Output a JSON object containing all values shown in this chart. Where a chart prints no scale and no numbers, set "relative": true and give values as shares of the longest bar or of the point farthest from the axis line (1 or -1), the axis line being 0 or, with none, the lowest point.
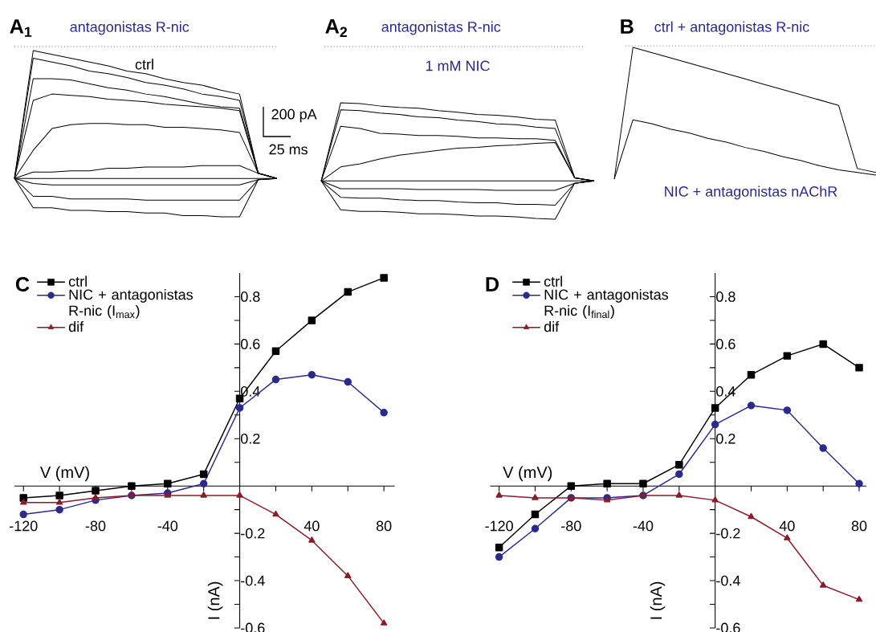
{
  "chart_data": [
    {
      "type": "line",
      "relative": true,
      "title": "antagonistas R-nic",
      "annotations": [
        "A$_{1}$",
        "ctrl",
        "200 pA",
        "25 ms"
      ],
      "categories": [
        null,
        null,
        null,
        null,
        null,
        null,
        null,
        null,
        null,
        null,
        null,
        null,
        null,
        null,
        null
      ],
      "series": [
        {
          "color": "#000000",
          "values": [
            0,
            1.0,
            0.97,
            0.94,
            0.91,
            0.88,
            0.84,
            0.82,
            0.78,
            0.75,
            0.73,
            0.69,
            0.66,
            0.04,
            0
          ]
        },
        {
          "color": "#000000",
          "values": [
            0,
            0.94,
            0.91,
            0.88,
            0.84,
            0.82,
            0.79,
            0.75,
            0.73,
            0.7,
            0.66,
            0.64,
            0.61,
            0.04,
            0
          ]
        },
        {
          "color": "#000000",
          "values": [
            0,
            0.78,
            0.78,
            0.77,
            0.74,
            0.71,
            0.69,
            0.66,
            0.64,
            0.61,
            0.58,
            0.56,
            0.55,
            0.04,
            0
          ]
        },
        {
          "color": "#000000",
          "values": [
            0,
            0.61,
            0.66,
            0.65,
            0.64,
            0.62,
            0.61,
            0.6,
            0.58,
            0.57,
            0.56,
            0.55,
            0.53,
            0.04,
            0
          ]
        },
        {
          "color": "#000000",
          "values": [
            0,
            0.22,
            0.39,
            0.42,
            0.43,
            0.43,
            0.42,
            0.42,
            0.4,
            0.4,
            0.39,
            0.38,
            0.36,
            0.04,
            0
          ]
        },
        {
          "color": "#000000",
          "values": [
            0,
            0.05,
            0.05,
            0.06,
            0.06,
            0.08,
            0.08,
            0.09,
            0.09,
            0.09,
            0.1,
            0.1,
            0.1,
            0.04,
            0
          ]
        },
        {
          "color": "#000000",
          "values": [
            0,
            0,
            0,
            0,
            0,
            0,
            0,
            0,
            0,
            0,
            0,
            0,
            0,
            0,
            0
          ]
        },
        {
          "color": "#000000",
          "values": [
            0,
            -0.04,
            -0.05,
            -0.05,
            -0.05,
            -0.05,
            -0.05,
            -0.05,
            -0.05,
            -0.05,
            -0.05,
            -0.05,
            -0.05,
            -0.01,
            0
          ]
        },
        {
          "color": "#000000",
          "values": [
            0,
            -0.14,
            -0.14,
            -0.16,
            -0.16,
            -0.16,
            -0.16,
            -0.17,
            -0.17,
            -0.17,
            -0.17,
            -0.17,
            -0.17,
            -0.01,
            0
          ]
        },
        {
          "color": "#000000",
          "values": [
            0,
            -0.23,
            -0.23,
            -0.25,
            -0.25,
            -0.26,
            -0.26,
            -0.27,
            -0.27,
            -0.29,
            -0.29,
            -0.3,
            -0.3,
            -0.01,
            0
          ]
        }
      ]
    },
    {
      "type": "line",
      "relative": true,
      "title": "antagonistas R-nic",
      "annotations": [
        "A$_{2}$",
        "1 mM NIC"
      ],
      "categories": [
        null,
        null,
        null,
        null,
        null,
        null,
        null,
        null,
        null,
        null,
        null,
        null,
        null,
        null,
        null
      ],
      "series": [
        {
          "color": "#000000",
          "values": [
            0,
            1.0,
            0.99,
            0.96,
            0.94,
            0.93,
            0.9,
            0.88,
            0.85,
            0.84,
            0.82,
            0.79,
            0.78,
            0.04,
            0
          ]
        },
        {
          "color": "#000000",
          "values": [
            0,
            0.91,
            0.9,
            0.87,
            0.85,
            0.82,
            0.81,
            0.78,
            0.76,
            0.73,
            0.72,
            0.69,
            0.67,
            0.04,
            0
          ]
        },
        {
          "color": "#000000",
          "values": [
            0,
            0.7,
            0.67,
            0.61,
            0.6,
            0.58,
            0.58,
            0.57,
            0.55,
            0.55,
            0.54,
            0.54,
            0.52,
            0.04,
            0
          ]
        },
        {
          "color": "#000000",
          "values": [
            0,
            0.18,
            0.22,
            0.28,
            0.33,
            0.36,
            0.39,
            0.42,
            0.43,
            0.45,
            0.46,
            0.48,
            0.49,
            0.04,
            0
          ]
        },
        {
          "color": "#000000",
          "values": [
            0,
            0,
            0,
            0,
            0,
            0,
            0,
            0,
            0,
            0,
            0,
            0,
            0,
            0,
            0
          ]
        },
        {
          "color": "#000000",
          "values": [
            0,
            -0.1,
            -0.1,
            -0.1,
            -0.1,
            -0.11,
            -0.11,
            -0.11,
            -0.11,
            -0.12,
            -0.12,
            -0.12,
            -0.12,
            -0.03,
            0
          ]
        },
        {
          "color": "#000000",
          "values": [
            0,
            -0.21,
            -0.22,
            -0.22,
            -0.24,
            -0.25,
            -0.25,
            -0.27,
            -0.28,
            -0.28,
            -0.3,
            -0.3,
            -0.31,
            -0.03,
            0
          ]
        },
        {
          "color": "#000000",
          "values": [
            0,
            -0.37,
            -0.39,
            -0.39,
            -0.4,
            -0.42,
            -0.42,
            -0.43,
            -0.45,
            -0.45,
            -0.46,
            -0.48,
            -0.49,
            -0.03,
            0
          ]
        }
      ]
    },
    {
      "type": "line",
      "relative": true,
      "title": "ctrl + antagonistas R-nic",
      "annotations": [
        "B",
        "NIC + antagonistas nAChR"
      ],
      "categories": [
        null,
        null,
        null,
        null,
        null,
        null,
        null,
        null,
        null,
        null,
        null,
        null,
        null,
        null,
        null
      ],
      "series": [
        {
          "color": "#000000",
          "values": [
            0.0,
            1.0,
            0.96,
            0.92,
            0.88,
            0.84,
            0.8,
            0.76,
            0.72,
            0.68,
            0.64,
            0.6,
            0.56,
            0.08,
            0.05
          ]
        },
        {
          "color": "#000000",
          "values": [
            0.0,
            0.45,
            0.42,
            0.38,
            0.35,
            0.31,
            0.28,
            0.24,
            0.21,
            0.17,
            0.14,
            0.1,
            0.07,
            0.05,
            0.03
          ]
        }
      ]
    },
    {
      "type": "line",
      "annotations": [
        "C"
      ],
      "xlabel": "V (mV)",
      "ylabel": "I (nA)",
      "legend": "top left",
      "x": [
        -120,
        -100,
        -80,
        -60,
        -40,
        -20,
        0,
        20,
        40,
        60,
        80
      ],
      "xlim": [
        -125,
        86
      ],
      "ylim": [
        -0.6,
        0.9
      ],
      "xticks": [
        -120,
        {
          "value": -100,
          "label": null
        },
        -80,
        {
          "value": -60,
          "label": null
        },
        -40,
        {
          "value": -20,
          "label": null
        },
        {
          "value": 0,
          "label": null
        },
        {
          "value": 20,
          "label": null
        },
        40,
        {
          "value": 60,
          "label": null
        },
        80
      ],
      "yticks": [
        -0.6,
        {
          "value": -0.5,
          "label": null
        },
        -0.4,
        {
          "value": -0.3,
          "label": null
        },
        -0.2,
        {
          "value": -0.1,
          "label": null
        },
        {
          "value": 0,
          "label": null
        },
        {
          "value": 0.1,
          "label": null
        },
        0.2,
        {
          "value": 0.3,
          "label": null
        },
        0.4,
        {
          "value": 0.5,
          "label": null
        },
        0.6,
        {
          "value": 0.7,
          "label": null
        },
        0.8
      ],
      "series": [
        {
          "name": "ctrl",
          "color": "#000000",
          "marker": "square",
          "values": [
            -0.05,
            -0.04,
            -0.02,
            0.0,
            0.01,
            0.05,
            0.37,
            0.57,
            0.7,
            0.82,
            0.88
          ]
        },
        {
          "name": "NIC + antagonistas R-nic (I$_{max}$)",
          "color": "#2a2a8e",
          "marker": "circle",
          "values": [
            -0.12,
            -0.1,
            -0.06,
            -0.04,
            -0.03,
            0.01,
            0.33,
            0.45,
            0.47,
            0.44,
            0.31
          ]
        },
        {
          "name": "dif",
          "color": "#8b1a2b",
          "marker": "triangle",
          "values": [
            -0.07,
            -0.07,
            -0.05,
            -0.04,
            -0.04,
            -0.04,
            -0.04,
            -0.12,
            -0.23,
            -0.38,
            -0.58
          ]
        }
      ]
    },
    {
      "type": "line",
      "annotations": [
        "D"
      ],
      "xlabel": "V (mV)",
      "ylabel": "I (nA)",
      "legend": "top left",
      "x": [
        -120,
        -100,
        -80,
        -60,
        -40,
        -20,
        0,
        20,
        40,
        60,
        80
      ],
      "xlim": [
        -125,
        84
      ],
      "ylim": [
        -0.6,
        0.9
      ],
      "xticks": [
        -120,
        {
          "value": -100,
          "label": null
        },
        -80,
        {
          "value": -60,
          "label": null
        },
        -40,
        {
          "value": -20,
          "label": null
        },
        {
          "value": 0,
          "label": null
        },
        {
          "value": 20,
          "label": null
        },
        40,
        {
          "value": 60,
          "label": null
        },
        80
      ],
      "yticks": [
        -0.6,
        {
          "value": -0.5,
          "label": null
        },
        -0.4,
        {
          "value": -0.3,
          "label": null
        },
        -0.2,
        {
          "value": -0.1,
          "label": null
        },
        {
          "value": 0,
          "label": null
        },
        {
          "value": 0.1,
          "label": null
        },
        0.2,
        {
          "value": 0.3,
          "label": null
        },
        0.4,
        {
          "value": 0.5,
          "label": null
        },
        0.6,
        {
          "value": 0.7,
          "label": null
        },
        0.8
      ],
      "series": [
        {
          "name": "ctrl",
          "color": "#000000",
          "marker": "square",
          "values": [
            -0.26,
            -0.12,
            0.0,
            0.01,
            0.01,
            0.09,
            0.33,
            0.47,
            0.55,
            0.6,
            0.5
          ]
        },
        {
          "name": "NIC + antagonistas R-nic (I$_{final}$)",
          "color": "#2a2a8e",
          "marker": "circle",
          "values": [
            -0.3,
            -0.18,
            -0.05,
            -0.05,
            -0.04,
            0.05,
            0.26,
            0.34,
            0.32,
            0.16,
            0.01
          ]
        },
        {
          "name": "dif",
          "color": "#8b1a2b",
          "marker": "triangle",
          "values": [
            -0.04,
            -0.05,
            -0.05,
            -0.06,
            -0.04,
            -0.04,
            -0.06,
            -0.13,
            -0.22,
            -0.42,
            -0.48
          ]
        }
      ]
    }
  ]
}
